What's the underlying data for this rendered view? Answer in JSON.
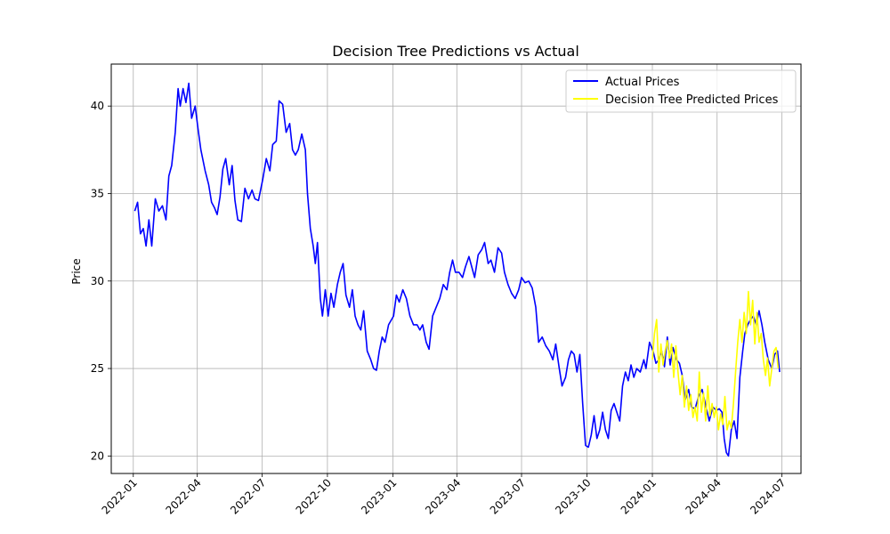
{
  "chart_data": {
    "type": "line",
    "title": "Decision Tree Predictions vs Actual",
    "xlabel": "",
    "ylabel": "Price",
    "grid": true,
    "legend_position": "top-right",
    "x_ticks": [
      "2022-01-01",
      "2022-04-01",
      "2022-07-01",
      "2022-10-01",
      "2023-01-01",
      "2023-04-01",
      "2023-07-01",
      "2023-10-01",
      "2024-01-01",
      "2024-04-01",
      "2024-07-01"
    ],
    "x_tick_labels": [
      "2022-01",
      "2022-04",
      "2022-07",
      "2022-10",
      "2023-01",
      "2023-04",
      "2023-07",
      "2023-10",
      "2024-01",
      "2024-04",
      "2024-07"
    ],
    "xlim": [
      "2021-12-01",
      "2024-07-28"
    ],
    "y_ticks": [
      20,
      25,
      30,
      35,
      40
    ],
    "ylim": [
      19.0,
      42.4
    ],
    "series": [
      {
        "name": "Actual Prices",
        "color": "#0000ff",
        "points": [
          [
            "2022-01-03",
            34.0
          ],
          [
            "2022-01-07",
            34.5
          ],
          [
            "2022-01-11",
            32.7
          ],
          [
            "2022-01-15",
            33.0
          ],
          [
            "2022-01-19",
            32.0
          ],
          [
            "2022-01-23",
            33.5
          ],
          [
            "2022-01-27",
            32.0
          ],
          [
            "2022-02-01",
            34.7
          ],
          [
            "2022-02-06",
            34.0
          ],
          [
            "2022-02-11",
            34.3
          ],
          [
            "2022-02-16",
            33.5
          ],
          [
            "2022-02-20",
            36.0
          ],
          [
            "2022-02-24",
            36.6
          ],
          [
            "2022-03-01",
            38.5
          ],
          [
            "2022-03-05",
            41.0
          ],
          [
            "2022-03-08",
            40.0
          ],
          [
            "2022-03-12",
            41.0
          ],
          [
            "2022-03-16",
            40.2
          ],
          [
            "2022-03-20",
            41.3
          ],
          [
            "2022-03-24",
            39.3
          ],
          [
            "2022-03-29",
            40.0
          ],
          [
            "2022-04-02",
            38.7
          ],
          [
            "2022-04-06",
            37.5
          ],
          [
            "2022-04-12",
            36.3
          ],
          [
            "2022-04-17",
            35.5
          ],
          [
            "2022-04-21",
            34.5
          ],
          [
            "2022-04-25",
            34.2
          ],
          [
            "2022-04-29",
            33.8
          ],
          [
            "2022-05-03",
            34.8
          ],
          [
            "2022-05-07",
            36.4
          ],
          [
            "2022-05-11",
            37.0
          ],
          [
            "2022-05-16",
            35.5
          ],
          [
            "2022-05-20",
            36.6
          ],
          [
            "2022-05-24",
            34.6
          ],
          [
            "2022-05-28",
            33.5
          ],
          [
            "2022-06-02",
            33.4
          ],
          [
            "2022-06-07",
            35.3
          ],
          [
            "2022-06-12",
            34.7
          ],
          [
            "2022-06-17",
            35.2
          ],
          [
            "2022-06-21",
            34.7
          ],
          [
            "2022-06-26",
            34.6
          ],
          [
            "2022-07-02",
            35.8
          ],
          [
            "2022-07-07",
            37.0
          ],
          [
            "2022-07-12",
            36.3
          ],
          [
            "2022-07-16",
            37.8
          ],
          [
            "2022-07-21",
            38.0
          ],
          [
            "2022-07-25",
            40.3
          ],
          [
            "2022-07-30",
            40.1
          ],
          [
            "2022-08-04",
            38.5
          ],
          [
            "2022-08-09",
            39.0
          ],
          [
            "2022-08-13",
            37.5
          ],
          [
            "2022-08-17",
            37.2
          ],
          [
            "2022-08-21",
            37.5
          ],
          [
            "2022-08-26",
            38.4
          ],
          [
            "2022-08-31",
            37.5
          ],
          [
            "2022-09-03",
            35.0
          ],
          [
            "2022-09-07",
            33.0
          ],
          [
            "2022-09-11",
            32.0
          ],
          [
            "2022-09-14",
            31.0
          ],
          [
            "2022-09-17",
            32.2
          ],
          [
            "2022-09-21",
            29.0
          ],
          [
            "2022-09-24",
            28.0
          ],
          [
            "2022-09-28",
            29.5
          ],
          [
            "2022-10-02",
            28.0
          ],
          [
            "2022-10-06",
            29.3
          ],
          [
            "2022-10-10",
            28.5
          ],
          [
            "2022-10-15",
            29.8
          ],
          [
            "2022-10-19",
            30.5
          ],
          [
            "2022-10-23",
            31.0
          ],
          [
            "2022-10-27",
            29.2
          ],
          [
            "2022-11-01",
            28.5
          ],
          [
            "2022-11-05",
            29.5
          ],
          [
            "2022-11-09",
            28.0
          ],
          [
            "2022-11-13",
            27.5
          ],
          [
            "2022-11-17",
            27.2
          ],
          [
            "2022-11-21",
            28.3
          ],
          [
            "2022-11-26",
            26.0
          ],
          [
            "2022-12-01",
            25.5
          ],
          [
            "2022-12-05",
            25.0
          ],
          [
            "2022-12-09",
            24.9
          ],
          [
            "2022-12-13",
            26.0
          ],
          [
            "2022-12-17",
            26.8
          ],
          [
            "2022-12-21",
            26.5
          ],
          [
            "2022-12-26",
            27.5
          ],
          [
            "2023-01-02",
            28.0
          ],
          [
            "2023-01-06",
            29.2
          ],
          [
            "2023-01-10",
            28.8
          ],
          [
            "2023-01-15",
            29.5
          ],
          [
            "2023-01-20",
            29.0
          ],
          [
            "2023-01-25",
            28.0
          ],
          [
            "2023-01-30",
            27.5
          ],
          [
            "2023-02-04",
            27.5
          ],
          [
            "2023-02-08",
            27.2
          ],
          [
            "2023-02-12",
            27.5
          ],
          [
            "2023-02-17",
            26.5
          ],
          [
            "2023-02-21",
            26.1
          ],
          [
            "2023-02-26",
            28.0
          ],
          [
            "2023-03-03",
            28.5
          ],
          [
            "2023-03-08",
            29.0
          ],
          [
            "2023-03-13",
            29.8
          ],
          [
            "2023-03-18",
            29.5
          ],
          [
            "2023-03-22",
            30.5
          ],
          [
            "2023-03-26",
            31.2
          ],
          [
            "2023-03-30",
            30.5
          ],
          [
            "2023-04-04",
            30.5
          ],
          [
            "2023-04-09",
            30.2
          ],
          [
            "2023-04-13",
            30.8
          ],
          [
            "2023-04-18",
            31.4
          ],
          [
            "2023-04-22",
            30.8
          ],
          [
            "2023-04-26",
            30.2
          ],
          [
            "2023-05-01",
            31.5
          ],
          [
            "2023-05-06",
            31.8
          ],
          [
            "2023-05-10",
            32.2
          ],
          [
            "2023-05-15",
            31.0
          ],
          [
            "2023-05-19",
            31.2
          ],
          [
            "2023-05-24",
            30.5
          ],
          [
            "2023-05-29",
            31.9
          ],
          [
            "2023-06-03",
            31.6
          ],
          [
            "2023-06-07",
            30.5
          ],
          [
            "2023-06-12",
            29.8
          ],
          [
            "2023-06-17",
            29.3
          ],
          [
            "2023-06-22",
            29.0
          ],
          [
            "2023-06-27",
            29.5
          ],
          [
            "2023-07-01",
            30.2
          ],
          [
            "2023-07-06",
            29.9
          ],
          [
            "2023-07-11",
            30.0
          ],
          [
            "2023-07-16",
            29.6
          ],
          [
            "2023-07-21",
            28.5
          ],
          [
            "2023-07-25",
            26.5
          ],
          [
            "2023-07-30",
            26.8
          ],
          [
            "2023-08-04",
            26.3
          ],
          [
            "2023-08-09",
            26.0
          ],
          [
            "2023-08-14",
            25.5
          ],
          [
            "2023-08-18",
            26.4
          ],
          [
            "2023-08-23",
            25.0
          ],
          [
            "2023-08-27",
            24.0
          ],
          [
            "2023-09-01",
            24.5
          ],
          [
            "2023-09-05",
            25.5
          ],
          [
            "2023-09-09",
            26.0
          ],
          [
            "2023-09-13",
            25.8
          ],
          [
            "2023-09-17",
            24.8
          ],
          [
            "2023-09-21",
            25.8
          ],
          [
            "2023-09-25",
            23.0
          ],
          [
            "2023-09-29",
            20.6
          ],
          [
            "2023-10-03",
            20.5
          ],
          [
            "2023-10-07",
            21.2
          ],
          [
            "2023-10-11",
            22.3
          ],
          [
            "2023-10-15",
            21.0
          ],
          [
            "2023-10-19",
            21.5
          ],
          [
            "2023-10-23",
            22.5
          ],
          [
            "2023-10-27",
            21.5
          ],
          [
            "2023-10-31",
            21.0
          ],
          [
            "2023-11-04",
            22.6
          ],
          [
            "2023-11-08",
            23.0
          ],
          [
            "2023-11-12",
            22.5
          ],
          [
            "2023-11-16",
            22.0
          ],
          [
            "2023-11-20",
            24.0
          ],
          [
            "2023-11-24",
            24.8
          ],
          [
            "2023-11-28",
            24.3
          ],
          [
            "2023-12-02",
            25.2
          ],
          [
            "2023-12-06",
            24.5
          ],
          [
            "2023-12-10",
            25.0
          ],
          [
            "2023-12-15",
            24.8
          ],
          [
            "2023-12-20",
            25.5
          ],
          [
            "2023-12-23",
            25.0
          ],
          [
            "2023-12-28",
            26.5
          ],
          [
            "2024-01-02",
            26.0
          ],
          [
            "2024-01-06",
            25.3
          ],
          [
            "2024-01-10",
            25.5
          ],
          [
            "2024-01-14",
            26.0
          ],
          [
            "2024-01-18",
            25.1
          ],
          [
            "2024-01-22",
            26.8
          ],
          [
            "2024-01-26",
            25.2
          ],
          [
            "2024-01-30",
            26.2
          ],
          [
            "2024-02-04",
            25.5
          ],
          [
            "2024-02-08",
            25.3
          ],
          [
            "2024-02-12",
            24.6
          ],
          [
            "2024-02-16",
            23.2
          ],
          [
            "2024-02-21",
            23.8
          ],
          [
            "2024-02-25",
            22.8
          ],
          [
            "2024-03-01",
            22.7
          ],
          [
            "2024-03-06",
            23.4
          ],
          [
            "2024-03-11",
            23.8
          ],
          [
            "2024-03-16",
            22.9
          ],
          [
            "2024-03-21",
            22.0
          ],
          [
            "2024-03-26",
            22.8
          ],
          [
            "2024-03-31",
            22.6
          ],
          [
            "2024-04-04",
            22.7
          ],
          [
            "2024-04-08",
            22.5
          ],
          [
            "2024-04-11",
            21.0
          ],
          [
            "2024-04-14",
            20.2
          ],
          [
            "2024-04-17",
            20.0
          ],
          [
            "2024-04-21",
            21.5
          ],
          [
            "2024-04-25",
            22.0
          ],
          [
            "2024-04-29",
            21.0
          ],
          [
            "2024-05-03",
            24.5
          ],
          [
            "2024-05-07",
            26.0
          ],
          [
            "2024-05-10",
            27.0
          ],
          [
            "2024-05-14",
            27.5
          ],
          [
            "2024-05-18",
            27.8
          ],
          [
            "2024-05-22",
            28.0
          ],
          [
            "2024-05-26",
            27.5
          ],
          [
            "2024-05-30",
            28.3
          ],
          [
            "2024-06-03",
            27.5
          ],
          [
            "2024-06-07",
            26.5
          ],
          [
            "2024-06-12",
            25.5
          ],
          [
            "2024-06-17",
            25.0
          ],
          [
            "2024-06-21",
            25.8
          ],
          [
            "2024-06-25",
            26.0
          ],
          [
            "2024-06-28",
            24.8
          ]
        ]
      },
      {
        "name": "Decision Tree Predicted Prices",
        "color": "#ffff00",
        "points": [
          [
            "2024-01-01",
            25.5
          ],
          [
            "2024-01-04",
            27.0
          ],
          [
            "2024-01-07",
            27.8
          ],
          [
            "2024-01-10",
            24.8
          ],
          [
            "2024-01-13",
            26.4
          ],
          [
            "2024-01-16",
            25.2
          ],
          [
            "2024-01-19",
            26.0
          ],
          [
            "2024-01-22",
            26.6
          ],
          [
            "2024-01-25",
            25.6
          ],
          [
            "2024-01-28",
            26.4
          ],
          [
            "2024-01-31",
            24.5
          ],
          [
            "2024-02-03",
            26.3
          ],
          [
            "2024-02-06",
            24.8
          ],
          [
            "2024-02-09",
            23.5
          ],
          [
            "2024-02-12",
            24.6
          ],
          [
            "2024-02-15",
            22.8
          ],
          [
            "2024-02-18",
            24.0
          ],
          [
            "2024-02-21",
            22.6
          ],
          [
            "2024-02-24",
            23.5
          ],
          [
            "2024-02-27",
            22.2
          ],
          [
            "2024-03-01",
            22.8
          ],
          [
            "2024-03-04",
            22.0
          ],
          [
            "2024-03-07",
            24.8
          ],
          [
            "2024-03-10",
            22.5
          ],
          [
            "2024-03-13",
            23.6
          ],
          [
            "2024-03-16",
            22.0
          ],
          [
            "2024-03-19",
            24.0
          ],
          [
            "2024-03-22",
            22.3
          ],
          [
            "2024-03-25",
            23.0
          ],
          [
            "2024-03-28",
            22.2
          ],
          [
            "2024-03-31",
            22.8
          ],
          [
            "2024-04-03",
            21.5
          ],
          [
            "2024-04-06",
            22.4
          ],
          [
            "2024-04-09",
            21.8
          ],
          [
            "2024-04-12",
            23.4
          ],
          [
            "2024-04-15",
            21.5
          ],
          [
            "2024-04-18",
            22.0
          ],
          [
            "2024-04-21",
            21.6
          ],
          [
            "2024-04-24",
            23.0
          ],
          [
            "2024-04-27",
            24.8
          ],
          [
            "2024-04-30",
            26.5
          ],
          [
            "2024-05-03",
            27.8
          ],
          [
            "2024-05-06",
            26.5
          ],
          [
            "2024-05-09",
            28.2
          ],
          [
            "2024-05-12",
            27.0
          ],
          [
            "2024-05-15",
            29.4
          ],
          [
            "2024-05-18",
            27.5
          ],
          [
            "2024-05-21",
            28.9
          ],
          [
            "2024-05-24",
            26.4
          ],
          [
            "2024-05-27",
            28.2
          ],
          [
            "2024-05-30",
            26.5
          ],
          [
            "2024-06-02",
            27.0
          ],
          [
            "2024-06-05",
            25.5
          ],
          [
            "2024-06-08",
            24.6
          ],
          [
            "2024-06-11",
            25.6
          ],
          [
            "2024-06-14",
            24.0
          ],
          [
            "2024-06-17",
            25.0
          ],
          [
            "2024-06-20",
            26.0
          ],
          [
            "2024-06-23",
            26.2
          ],
          [
            "2024-06-26",
            25.0
          ]
        ]
      }
    ]
  }
}
